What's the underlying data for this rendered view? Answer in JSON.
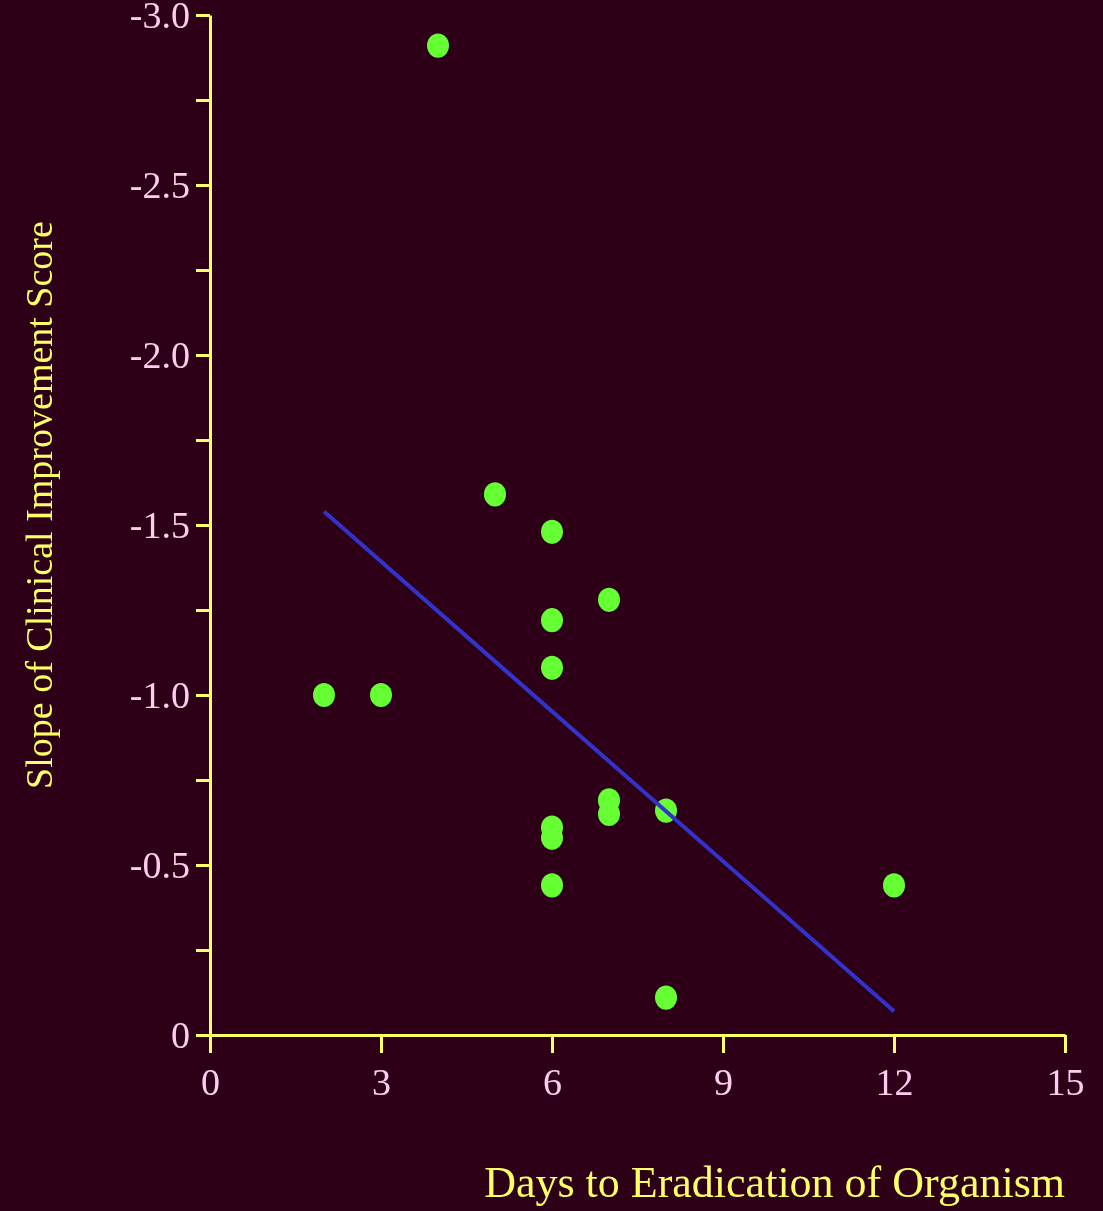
{
  "chart_data": {
    "type": "scatter",
    "xlabel": "Days to Eradication of Organism",
    "ylabel": "Slope of Clinical Improvement Score",
    "xlim": [
      0,
      15
    ],
    "xticks": [
      0,
      3,
      6,
      9,
      12,
      15
    ],
    "ylim": [
      0,
      -3
    ],
    "yticks": [
      {
        "value": 0,
        "label": "0"
      },
      {
        "value": -0.25,
        "label": null
      },
      {
        "value": -0.5,
        "label": "-0.5"
      },
      {
        "value": -0.75,
        "label": null
      },
      {
        "value": -1,
        "label": "-1.0"
      },
      {
        "value": -1.25,
        "label": null
      },
      {
        "value": -1.5,
        "label": "-1.5"
      },
      {
        "value": -1.75,
        "label": null
      },
      {
        "value": -2,
        "label": "-2.0"
      },
      {
        "value": -2.25,
        "label": null
      },
      {
        "value": -2.5,
        "label": "-2.5"
      },
      {
        "value": -2.75,
        "label": null
      },
      {
        "value": -3,
        "label": "-3.0"
      }
    ],
    "grid": false,
    "marker": "circle",
    "series": [
      {
        "color": "#66ff33",
        "x": [
          4,
          5,
          6,
          7,
          6,
          6,
          2,
          3,
          7,
          7,
          8,
          6,
          6,
          6,
          12,
          8
        ],
        "values": [
          -2.91,
          -1.59,
          -1.48,
          -1.28,
          -1.22,
          -1.08,
          -1.0,
          -1.0,
          -0.69,
          -0.65,
          -0.66,
          -0.61,
          -0.58,
          -0.44,
          -0.44,
          -0.11
        ]
      },
      {
        "type": "line",
        "marker": "none",
        "color": "#3333cc",
        "x": [
          2,
          12
        ],
        "values": [
          -1.54,
          -0.07
        ]
      }
    ]
  }
}
